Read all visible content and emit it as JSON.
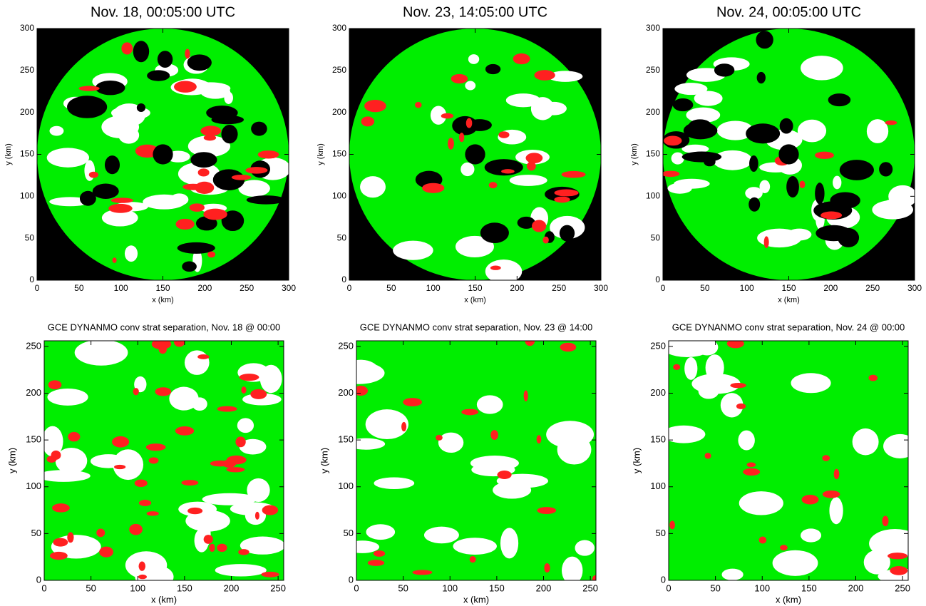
{
  "chart_data": [
    {
      "type": "heatmap",
      "shape": "disk",
      "title": "Nov. 18, 00:05:00 UTC",
      "xlabel": "x (km)",
      "ylabel": "y (km)",
      "xlim": [
        0,
        300
      ],
      "ylim": [
        0,
        300
      ],
      "xticks": [
        0,
        50,
        100,
        150,
        200,
        250,
        300
      ],
      "yticks": [
        0,
        50,
        100,
        150,
        200,
        250,
        300
      ],
      "colors": [
        "#000000",
        "#00ee00",
        "#ffffff",
        "#ff2020"
      ]
    },
    {
      "type": "heatmap",
      "shape": "disk",
      "title": "Nov. 23, 14:05:00 UTC",
      "xlabel": "x (km)",
      "ylabel": "y (km)",
      "xlim": [
        0,
        300
      ],
      "ylim": [
        0,
        300
      ],
      "xticks": [
        0,
        50,
        100,
        150,
        200,
        250,
        300
      ],
      "yticks": [
        0,
        50,
        100,
        150,
        200,
        250,
        300
      ],
      "colors": [
        "#000000",
        "#00ee00",
        "#ffffff",
        "#ff2020"
      ]
    },
    {
      "type": "heatmap",
      "shape": "disk",
      "title": "Nov. 24, 00:05:00 UTC",
      "xlabel": "x (km)",
      "ylabel": "y (km)",
      "xlim": [
        0,
        300
      ],
      "ylim": [
        0,
        300
      ],
      "xticks": [
        0,
        50,
        100,
        150,
        200,
        250,
        300
      ],
      "yticks": [
        0,
        50,
        100,
        150,
        200,
        250,
        300
      ],
      "colors": [
        "#000000",
        "#00ee00",
        "#ffffff",
        "#ff2020"
      ]
    },
    {
      "type": "heatmap",
      "shape": "square",
      "title": "GCE DYNANMO conv strat separation, Nov. 18 @ 00:00",
      "xlabel": "x (km)",
      "ylabel": "y (km)",
      "xlim": [
        0,
        256
      ],
      "ylim": [
        0,
        256
      ],
      "xticks": [
        0,
        50,
        100,
        150,
        200,
        250
      ],
      "yticks": [
        0,
        50,
        100,
        150,
        200,
        250
      ],
      "colors": [
        "#ffffff",
        "#00ee00",
        "#ffffff",
        "#ff2020"
      ]
    },
    {
      "type": "heatmap",
      "shape": "square",
      "title": "GCE DYNANMO conv strat separation, Nov. 23 @ 14:00",
      "xlabel": "x (km)",
      "ylabel": "y (km)",
      "xlim": [
        0,
        256
      ],
      "ylim": [
        0,
        256
      ],
      "xticks": [
        0,
        50,
        100,
        150,
        200,
        250
      ],
      "yticks": [
        0,
        50,
        100,
        150,
        200,
        250
      ],
      "colors": [
        "#ffffff",
        "#00ee00",
        "#ffffff",
        "#ff2020"
      ]
    },
    {
      "type": "heatmap",
      "shape": "square",
      "title": "GCE DYNANMO conv strat separation, Nov. 24 @ 00:00",
      "xlabel": "x (km)",
      "ylabel": "y (km)",
      "xlim": [
        0,
        256
      ],
      "ylim": [
        0,
        256
      ],
      "xticks": [
        0,
        50,
        100,
        150,
        200,
        250
      ],
      "yticks": [
        0,
        50,
        100,
        150,
        200,
        250
      ],
      "colors": [
        "#ffffff",
        "#00ee00",
        "#ffffff",
        "#ff2020"
      ]
    }
  ]
}
